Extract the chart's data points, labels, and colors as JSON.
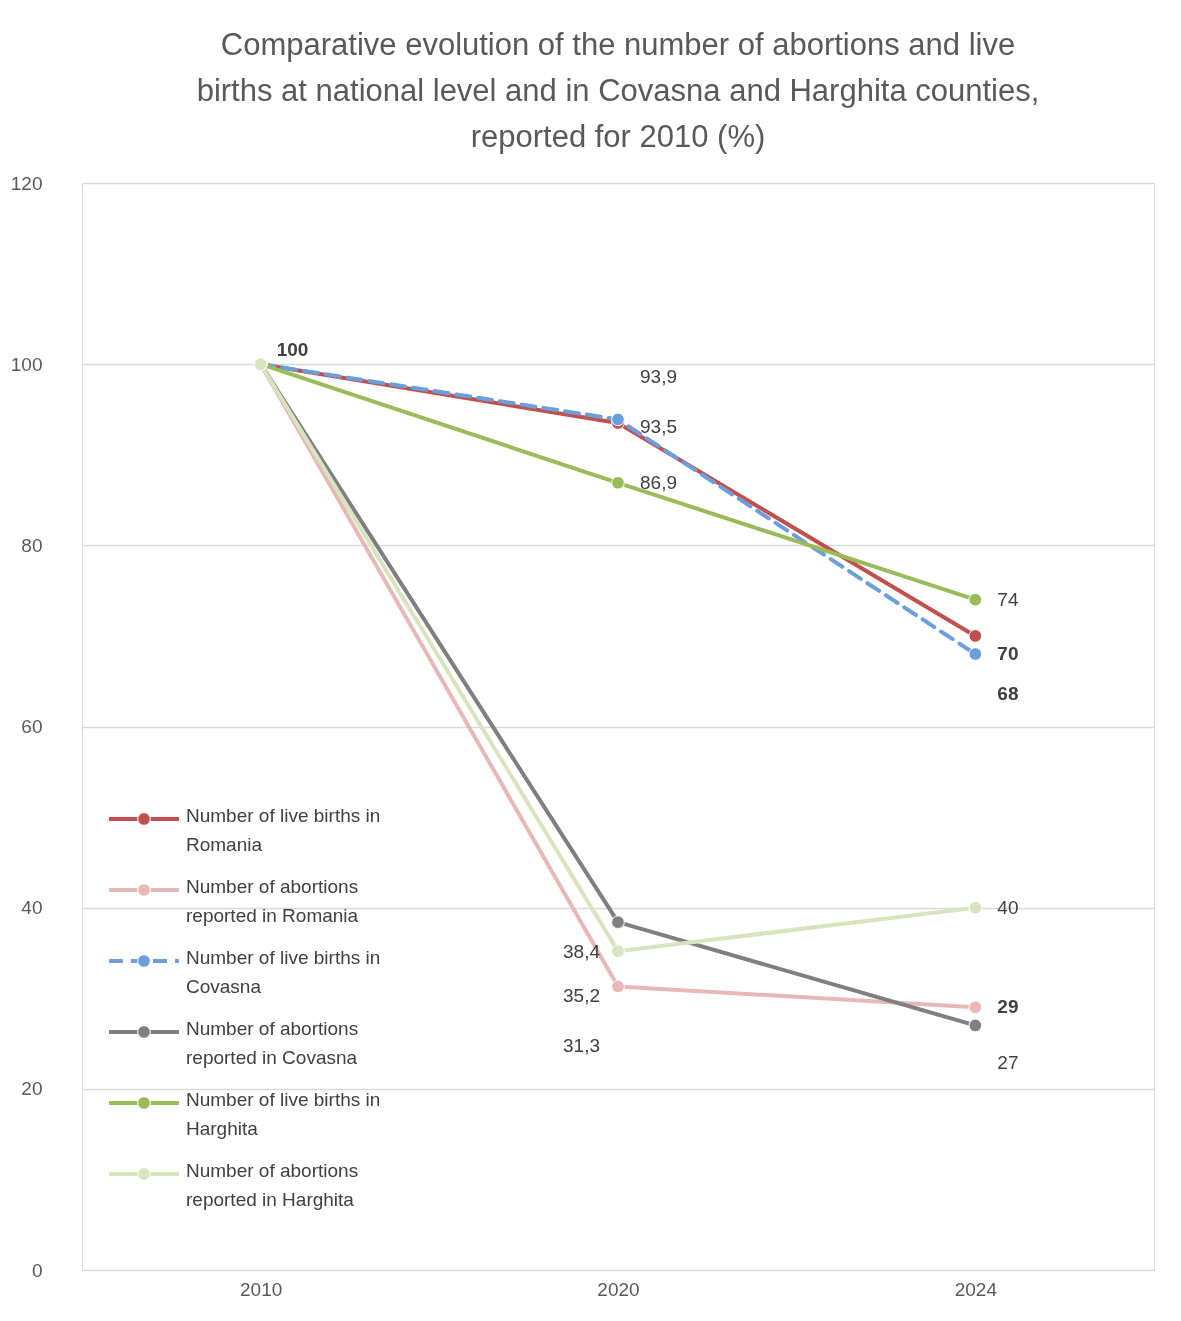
{
  "chart_data": {
    "type": "line",
    "title": "Comparative evolution of the number of abortions and live births at national level and in Covasna and Harghita counties, reported for 2010 (%)",
    "categories": [
      "2010",
      "2020",
      "2024"
    ],
    "series": [
      {
        "name": "Number of live births in Romania",
        "color": "#c0504d",
        "line_style": "solid",
        "values": [
          100,
          93.5,
          70
        ],
        "value_labels": [
          "100",
          "93,5",
          "70"
        ]
      },
      {
        "name": "Number of abortions reported in Romania",
        "color": "#e6b9b8",
        "line_style": "solid",
        "values": [
          100,
          31.3,
          29
        ],
        "value_labels": [
          null,
          "31,3",
          "29"
        ]
      },
      {
        "name": "Number of live births in Covasna",
        "color": "#6a9fdc",
        "line_style": "dashed",
        "values": [
          100,
          93.9,
          68
        ],
        "value_labels": [
          null,
          "93,9",
          "68"
        ]
      },
      {
        "name": "Number of abortions reported in Covasna",
        "color": "#7f7f7f",
        "line_style": "solid",
        "values": [
          100,
          38.4,
          27
        ],
        "value_labels": [
          null,
          "38,4",
          "27"
        ]
      },
      {
        "name": "Number of live births in Harghita",
        "color": "#9bbb59",
        "line_style": "solid",
        "values": [
          100,
          86.9,
          74
        ],
        "value_labels": [
          null,
          "86,9",
          "74"
        ]
      },
      {
        "name": "Number of abortions reported in Harghita",
        "color": "#d7e4bd",
        "line_style": "solid",
        "values": [
          100,
          35.2,
          40
        ],
        "value_labels": [
          null,
          "35,2",
          "40"
        ]
      }
    ],
    "ylim": [
      0,
      120
    ],
    "yticks": [
      0,
      20,
      40,
      60,
      80,
      100,
      120
    ],
    "grid": "y",
    "legend": "bottom left",
    "marker": "circle"
  }
}
